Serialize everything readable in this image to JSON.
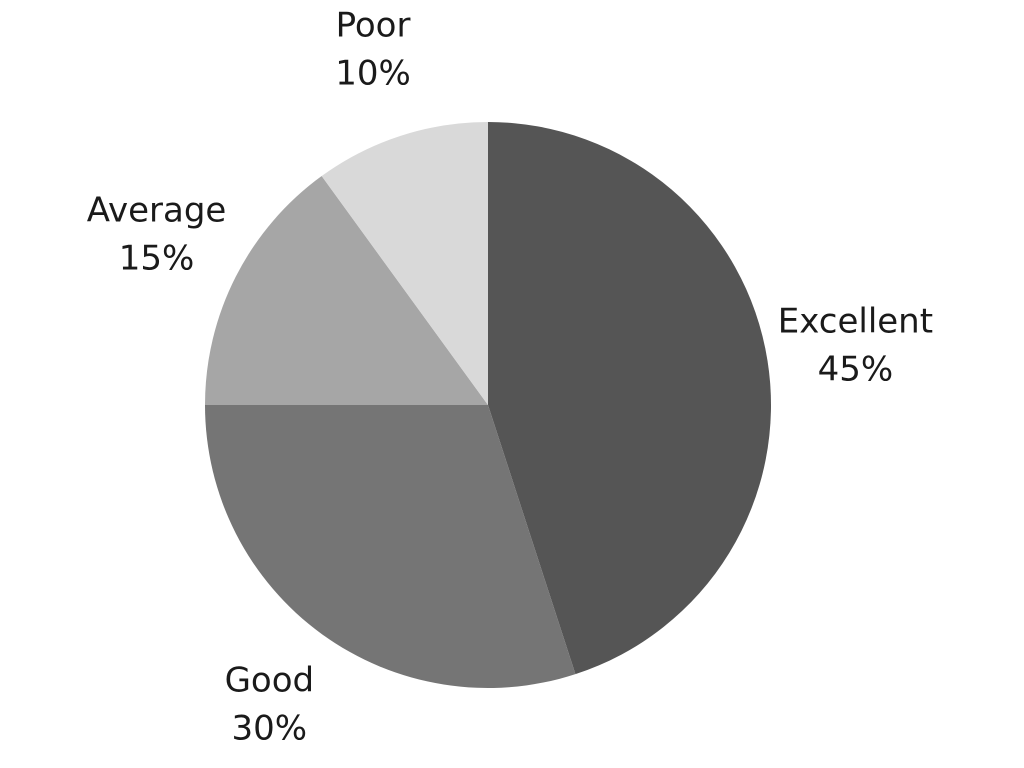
{
  "chart_data": {
    "type": "pie",
    "categories": [
      "Excellent",
      "Good",
      "Average",
      "Poor"
    ],
    "values": [
      45,
      30,
      15,
      10
    ],
    "value_labels": [
      "45%",
      "30%",
      "15%",
      "10%"
    ],
    "colors": [
      "#555555",
      "#757575",
      "#a6a6a6",
      "#d9d9d9"
    ]
  }
}
